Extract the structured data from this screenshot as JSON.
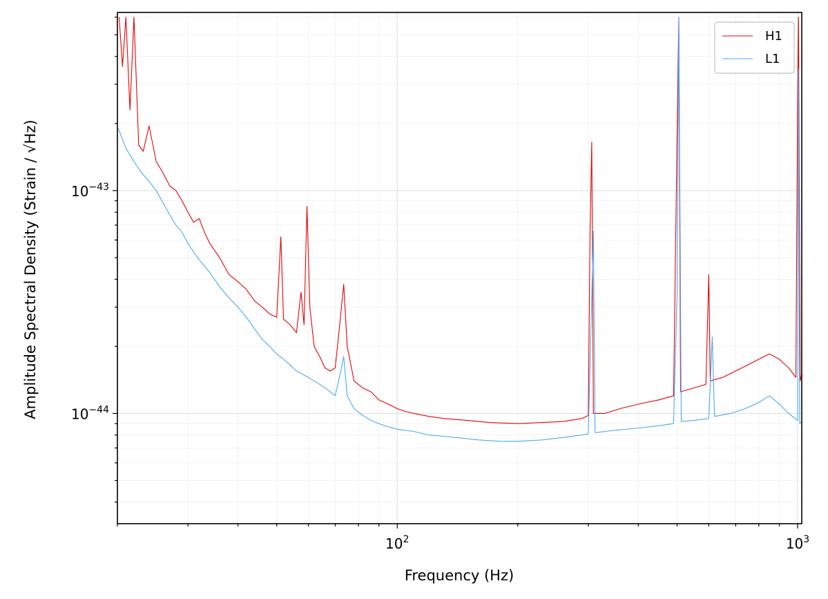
{
  "chart_data": {
    "type": "line",
    "xlabel": "Frequency (Hz)",
    "ylabel": "Amplitude Spectral Density (Strain / √Hz)",
    "x_scale": "log",
    "y_scale": "log",
    "xlim": [
      20,
      1024
    ],
    "ylim": [
      3.2e-45,
      6.3e-43
    ],
    "grid": true,
    "legend_position": "top-right",
    "x_ticks": [
      {
        "value": 100,
        "label": "10^2"
      },
      {
        "value": 1000,
        "label": "10^3"
      }
    ],
    "y_ticks": [
      {
        "value": 1e-44,
        "label": "10^−44"
      },
      {
        "value": 1e-43,
        "label": "10^−43"
      }
    ],
    "series": [
      {
        "name": "H1",
        "color": "#e80000",
        "points": [
          [
            20.2,
            6e-43
          ],
          [
            20.6,
            3.6e-43
          ],
          [
            21.0,
            6e-43
          ],
          [
            21.5,
            2.3e-43
          ],
          [
            22,
            6e-43
          ],
          [
            22.6,
            1.6e-43
          ],
          [
            23.2,
            1.5e-43
          ],
          [
            24,
            1.95e-43
          ],
          [
            25,
            1.35e-43
          ],
          [
            26,
            1.2e-43
          ],
          [
            27,
            1.05e-43
          ],
          [
            28,
            1e-43
          ],
          [
            29,
            9e-44
          ],
          [
            30,
            8e-44
          ],
          [
            31,
            7.2e-44
          ],
          [
            32,
            7.5e-44
          ],
          [
            33,
            6.5e-44
          ],
          [
            34,
            5.8e-44
          ],
          [
            36,
            5e-44
          ],
          [
            38,
            4.2e-44
          ],
          [
            40,
            3.9e-44
          ],
          [
            42,
            3.6e-44
          ],
          [
            44,
            3.2e-44
          ],
          [
            46,
            3e-44
          ],
          [
            48,
            2.8e-44
          ],
          [
            50,
            2.7e-44
          ],
          [
            51.2,
            6.2e-44
          ],
          [
            52,
            2.65e-44
          ],
          [
            54,
            2.5e-44
          ],
          [
            56,
            2.3e-44
          ],
          [
            57.5,
            3.5e-44
          ],
          [
            58.5,
            2.5e-44
          ],
          [
            59.5,
            8.5e-44
          ],
          [
            60.5,
            3e-44
          ],
          [
            62,
            2e-44
          ],
          [
            64,
            1.8e-44
          ],
          [
            66,
            1.6e-44
          ],
          [
            68,
            1.55e-44
          ],
          [
            70,
            1.6e-44
          ],
          [
            72,
            2.6e-44
          ],
          [
            73.5,
            3.8e-44
          ],
          [
            75,
            2e-44
          ],
          [
            78,
            1.4e-44
          ],
          [
            82,
            1.3e-44
          ],
          [
            86,
            1.25e-44
          ],
          [
            90,
            1.15e-44
          ],
          [
            95,
            1.1e-44
          ],
          [
            100,
            1.05e-44
          ],
          [
            105,
            1.02e-44
          ],
          [
            110,
            1e-44
          ],
          [
            120,
            9.7e-45
          ],
          [
            130,
            9.5e-45
          ],
          [
            150,
            9.3e-45
          ],
          [
            170,
            9.1e-45
          ],
          [
            200,
            9e-45
          ],
          [
            230,
            9.1e-45
          ],
          [
            260,
            9.2e-45
          ],
          [
            290,
            9.5e-45
          ],
          [
            300,
            9.8e-45
          ],
          [
            303,
            6.4e-44
          ],
          [
            306,
            1.65e-43
          ],
          [
            309,
            1e-44
          ],
          [
            330,
            1e-44
          ],
          [
            360,
            1.05e-44
          ],
          [
            400,
            1.1e-44
          ],
          [
            450,
            1.15e-44
          ],
          [
            490,
            1.2e-44
          ],
          [
            500,
            1.8e-43
          ],
          [
            505,
            6e-43
          ],
          [
            510,
            1.25e-44
          ],
          [
            550,
            1.3e-44
          ],
          [
            590,
            1.35e-44
          ],
          [
            600,
            4.2e-44
          ],
          [
            605,
            1.4e-44
          ],
          [
            650,
            1.45e-44
          ],
          [
            700,
            1.55e-44
          ],
          [
            750,
            1.65e-44
          ],
          [
            800,
            1.75e-44
          ],
          [
            850,
            1.85e-44
          ],
          [
            900,
            1.75e-44
          ],
          [
            950,
            1.6e-44
          ],
          [
            990,
            1.45e-44
          ],
          [
            1000,
            2.6e-43
          ],
          [
            1005,
            6e-43
          ],
          [
            1015,
            1.4e-44
          ],
          [
            1024,
            1.5e-44
          ]
        ]
      },
      {
        "name": "L1",
        "color": "#4aa8f5",
        "points": [
          [
            20.1,
            1.9e-43
          ],
          [
            21,
            1.55e-43
          ],
          [
            22,
            1.35e-43
          ],
          [
            23,
            1.2e-43
          ],
          [
            24,
            1.1e-43
          ],
          [
            25,
            1e-43
          ],
          [
            26,
            8.8e-44
          ],
          [
            27,
            7.8e-44
          ],
          [
            28,
            7e-44
          ],
          [
            29,
            6.5e-44
          ],
          [
            30,
            5.8e-44
          ],
          [
            31,
            5.3e-44
          ],
          [
            32,
            4.9e-44
          ],
          [
            34,
            4.3e-44
          ],
          [
            36,
            3.7e-44
          ],
          [
            38,
            3.3e-44
          ],
          [
            40,
            3e-44
          ],
          [
            42,
            2.7e-44
          ],
          [
            44,
            2.4e-44
          ],
          [
            46,
            2.15e-44
          ],
          [
            48,
            2e-44
          ],
          [
            50,
            1.85e-44
          ],
          [
            52,
            1.75e-44
          ],
          [
            54,
            1.65e-44
          ],
          [
            56,
            1.55e-44
          ],
          [
            58,
            1.5e-44
          ],
          [
            60,
            1.45e-44
          ],
          [
            62,
            1.4e-44
          ],
          [
            64,
            1.35e-44
          ],
          [
            66,
            1.3e-44
          ],
          [
            68,
            1.25e-44
          ],
          [
            70,
            1.2e-44
          ],
          [
            72,
            1.5e-44
          ],
          [
            73.5,
            1.8e-44
          ],
          [
            75,
            1.2e-44
          ],
          [
            78,
            1.05e-44
          ],
          [
            82,
            9.8e-45
          ],
          [
            86,
            9.3e-45
          ],
          [
            90,
            9e-45
          ],
          [
            95,
            8.7e-45
          ],
          [
            100,
            8.5e-45
          ],
          [
            110,
            8.3e-45
          ],
          [
            120,
            8e-45
          ],
          [
            140,
            7.8e-45
          ],
          [
            160,
            7.6e-45
          ],
          [
            180,
            7.5e-45
          ],
          [
            200,
            7.5e-45
          ],
          [
            230,
            7.6e-45
          ],
          [
            260,
            7.8e-45
          ],
          [
            290,
            8e-45
          ],
          [
            300,
            8.1e-45
          ],
          [
            306,
            3.3e-44
          ],
          [
            309,
            6.6e-44
          ],
          [
            312,
            8.2e-45
          ],
          [
            350,
            8.4e-45
          ],
          [
            400,
            8.6e-45
          ],
          [
            450,
            8.8e-45
          ],
          [
            490,
            9e-45
          ],
          [
            500,
            3.5e-44
          ],
          [
            505,
            6e-43
          ],
          [
            512,
            9.2e-45
          ],
          [
            550,
            9.3e-45
          ],
          [
            600,
            9.5e-45
          ],
          [
            612,
            2.2e-44
          ],
          [
            620,
            9.7e-45
          ],
          [
            680,
            1e-44
          ],
          [
            740,
            1.05e-44
          ],
          [
            800,
            1.12e-44
          ],
          [
            850,
            1.2e-44
          ],
          [
            900,
            1.1e-44
          ],
          [
            950,
            1e-44
          ],
          [
            1000,
            9.3e-45
          ],
          [
            1005,
            3.5e-43
          ],
          [
            1012,
            9e-45
          ],
          [
            1024,
            9.2e-45
          ]
        ]
      }
    ]
  }
}
